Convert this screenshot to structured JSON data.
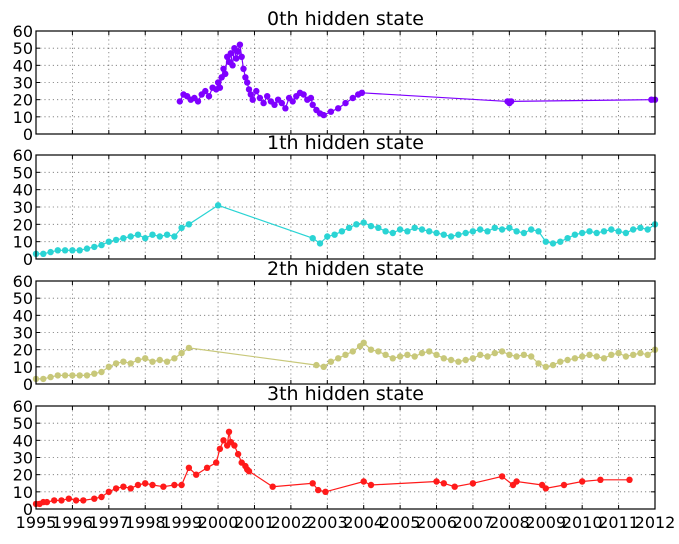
{
  "chart_data": [
    {
      "type": "line",
      "title": "0th hidden state",
      "color": "#7f00ff",
      "ylim": [
        0,
        60
      ],
      "yticks": [
        "0",
        "10",
        "20",
        "30",
        "40",
        "50",
        "60"
      ],
      "xlim": [
        1995,
        2012
      ],
      "grid": true,
      "series": [
        {
          "x": [
            1998.95,
            1999.05,
            1999.15,
            1999.25,
            1999.35,
            1999.45,
            1999.55,
            1999.65,
            1999.75,
            1999.85,
            1999.95,
            2000.0,
            2000.05,
            2000.1,
            2000.15,
            2000.2,
            2000.25,
            2000.3,
            2000.35,
            2000.4,
            2000.45,
            2000.5,
            2000.55,
            2000.6,
            2000.65,
            2000.7,
            2000.75,
            2000.8,
            2000.85,
            2000.9,
            2000.95,
            2001.05,
            2001.15,
            2001.25,
            2001.35,
            2001.45,
            2001.55,
            2001.65,
            2001.75,
            2001.85,
            2001.95,
            2002.05,
            2002.15,
            2002.25,
            2002.35,
            2002.45,
            2002.55,
            2002.6,
            2002.7,
            2002.8,
            2002.9,
            2003.1,
            2003.3,
            2003.5,
            2003.7,
            2003.85,
            2003.95,
            2007.95,
            2008.0,
            2008.05,
            2011.9,
            2012.0
          ],
          "y": [
            19,
            23,
            22,
            20,
            21,
            19,
            23,
            25,
            22,
            27,
            26,
            30,
            27,
            33,
            38,
            35,
            45,
            42,
            47,
            40,
            50,
            44,
            48,
            52,
            45,
            38,
            33,
            30,
            26,
            23,
            20,
            25,
            21,
            18,
            22,
            19,
            17,
            20,
            18,
            15,
            21,
            19,
            22,
            24,
            23,
            20,
            21,
            17,
            14,
            12,
            11,
            13,
            15,
            18,
            21,
            23,
            24,
            19,
            18,
            19,
            20,
            20
          ]
        }
      ]
    },
    {
      "type": "line",
      "title": "1th hidden state",
      "color": "#2ad4d4",
      "ylim": [
        0,
        60
      ],
      "yticks": [
        "0",
        "10",
        "20",
        "30",
        "40",
        "50",
        "60"
      ],
      "xlim": [
        1995,
        2012
      ],
      "grid": true,
      "series": [
        {
          "x": [
            1995.0,
            1995.2,
            1995.4,
            1995.6,
            1995.8,
            1996.0,
            1996.2,
            1996.4,
            1996.6,
            1996.8,
            1997.0,
            1997.2,
            1997.4,
            1997.6,
            1997.8,
            1998.0,
            1998.2,
            1998.4,
            1998.6,
            1998.8,
            1999.0,
            1999.2,
            2000.0,
            2002.6,
            2002.8,
            2003.0,
            2003.2,
            2003.4,
            2003.6,
            2003.8,
            2004.0,
            2004.2,
            2004.4,
            2004.6,
            2004.8,
            2005.0,
            2005.2,
            2005.4,
            2005.6,
            2005.8,
            2006.0,
            2006.2,
            2006.4,
            2006.6,
            2006.8,
            2007.0,
            2007.2,
            2007.4,
            2007.6,
            2007.8,
            2008.0,
            2008.2,
            2008.4,
            2008.6,
            2008.8,
            2009.0,
            2009.2,
            2009.4,
            2009.6,
            2009.8,
            2010.0,
            2010.2,
            2010.4,
            2010.6,
            2010.8,
            2011.0,
            2011.2,
            2011.4,
            2011.6,
            2011.8,
            2012.0
          ],
          "y": [
            3,
            3,
            4,
            5,
            5,
            5,
            5,
            6,
            7,
            8,
            10,
            11,
            12,
            13,
            14,
            12,
            14,
            13,
            14,
            13,
            18,
            20,
            31,
            12,
            9,
            13,
            14,
            16,
            18,
            20,
            21,
            19,
            18,
            16,
            15,
            17,
            16,
            18,
            17,
            16,
            15,
            14,
            13,
            14,
            15,
            16,
            17,
            16,
            18,
            17,
            18,
            16,
            15,
            17,
            16,
            10,
            9,
            10,
            12,
            14,
            15,
            16,
            15,
            16,
            17,
            16,
            15,
            17,
            18,
            17,
            20
          ]
        }
      ]
    },
    {
      "type": "line",
      "title": "2th hidden state",
      "color": "#c8c87a",
      "ylim": [
        0,
        60
      ],
      "yticks": [
        "0",
        "10",
        "20",
        "30",
        "40",
        "50",
        "60"
      ],
      "xlim": [
        1995,
        2012
      ],
      "grid": true,
      "series": [
        {
          "x": [
            1995.0,
            1995.2,
            1995.4,
            1995.6,
            1995.8,
            1996.0,
            1996.2,
            1996.4,
            1996.6,
            1996.8,
            1997.0,
            1997.2,
            1997.4,
            1997.6,
            1997.8,
            1998.0,
            1998.2,
            1998.4,
            1998.6,
            1998.8,
            1999.0,
            1999.2,
            2002.7,
            2002.9,
            2003.1,
            2003.3,
            2003.5,
            2003.7,
            2003.9,
            2004.0,
            2004.2,
            2004.4,
            2004.6,
            2004.8,
            2005.0,
            2005.2,
            2005.4,
            2005.6,
            2005.8,
            2006.0,
            2006.2,
            2006.4,
            2006.6,
            2006.8,
            2007.0,
            2007.2,
            2007.4,
            2007.6,
            2007.8,
            2008.0,
            2008.2,
            2008.4,
            2008.6,
            2008.8,
            2009.0,
            2009.2,
            2009.4,
            2009.6,
            2009.8,
            2010.0,
            2010.2,
            2010.4,
            2010.6,
            2010.8,
            2011.0,
            2011.2,
            2011.4,
            2011.6,
            2011.8,
            2012.0
          ],
          "y": [
            3,
            3,
            4,
            5,
            5,
            5,
            5,
            5,
            6,
            7,
            10,
            12,
            13,
            12,
            14,
            15,
            13,
            14,
            13,
            15,
            18,
            21,
            11,
            10,
            13,
            15,
            17,
            19,
            22,
            24,
            20,
            19,
            17,
            15,
            16,
            17,
            16,
            18,
            19,
            17,
            15,
            14,
            13,
            14,
            15,
            17,
            16,
            18,
            19,
            17,
            16,
            17,
            16,
            12,
            10,
            11,
            13,
            14,
            15,
            16,
            17,
            16,
            15,
            17,
            18,
            16,
            17,
            18,
            17,
            20
          ]
        }
      ]
    },
    {
      "type": "line",
      "title": "3th hidden state",
      "color": "#ff1a1a",
      "ylim": [
        0,
        60
      ],
      "yticks": [
        "0",
        "10",
        "20",
        "30",
        "40",
        "50",
        "60"
      ],
      "xlim": [
        1995,
        2012
      ],
      "xticks": [
        "1995",
        "1996",
        "1997",
        "1998",
        "1999",
        "2000",
        "2001",
        "2002",
        "2003",
        "2004",
        "2005",
        "2006",
        "2007",
        "2008",
        "2009",
        "2010",
        "2011",
        "2012"
      ],
      "grid": true,
      "series": [
        {
          "x": [
            1995.0,
            1995.1,
            1995.2,
            1995.3,
            1995.5,
            1995.7,
            1995.9,
            1996.1,
            1996.3,
            1996.6,
            1996.8,
            1997.0,
            1997.2,
            1997.4,
            1997.6,
            1997.8,
            1998.0,
            1998.2,
            1998.5,
            1998.8,
            1999.0,
            1999.2,
            1999.4,
            1999.7,
            1999.95,
            2000.05,
            2000.15,
            2000.25,
            2000.3,
            2000.35,
            2000.45,
            2000.55,
            2000.65,
            2000.75,
            2000.8,
            2000.85,
            2001.5,
            2002.6,
            2002.75,
            2002.95,
            2004.0,
            2004.2,
            2006.0,
            2006.2,
            2006.5,
            2007.0,
            2007.8,
            2008.1,
            2008.2,
            2008.9,
            2009.0,
            2009.5,
            2010.0,
            2010.5,
            2011.3
          ],
          "y": [
            3,
            3,
            4,
            4,
            5,
            5,
            6,
            5,
            5,
            6,
            7,
            10,
            12,
            13,
            12,
            14,
            15,
            14,
            13,
            14,
            14,
            24,
            20,
            24,
            27,
            35,
            40,
            37,
            45,
            39,
            37,
            32,
            27,
            25,
            23,
            22,
            13,
            15,
            11,
            10,
            16,
            14,
            16,
            15,
            13,
            15,
            19,
            14,
            16,
            14,
            12,
            14,
            16,
            17,
            17
          ]
        }
      ]
    }
  ]
}
